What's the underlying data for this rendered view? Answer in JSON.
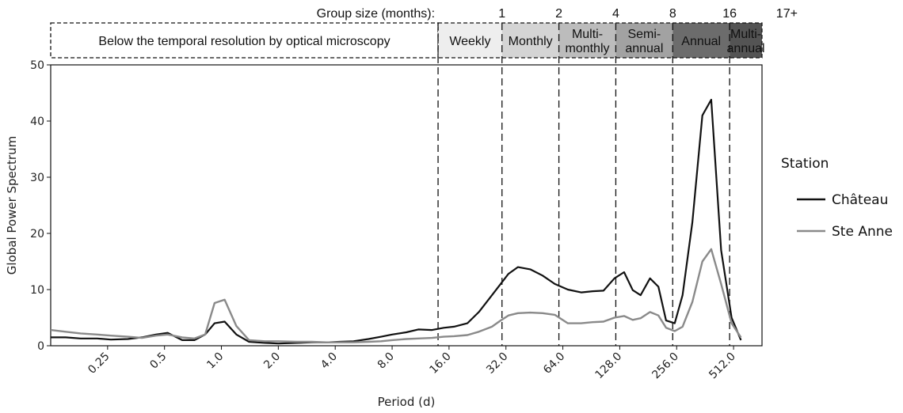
{
  "chart_data": {
    "type": "line",
    "xlabel": "Period (d)",
    "ylabel": "Global Power Spectrum",
    "xscale": "log2",
    "xlim": [
      0.125,
      724
    ],
    "ylim": [
      0,
      50
    ],
    "x_ticks": [
      0.25,
      0.5,
      1.0,
      2.0,
      4.0,
      8.0,
      16.0,
      32.0,
      64.0,
      128.0,
      256.0,
      512.0
    ],
    "x_tick_labels": [
      "0.25",
      "0.5",
      "1.0",
      "2.0",
      "4.0",
      "8.0",
      "16.0",
      "32.0",
      "64.0",
      "128.0",
      "256.0",
      "512.0"
    ],
    "y_ticks": [
      0,
      10,
      20,
      30,
      40,
      50
    ],
    "y_tick_labels": [
      "0",
      "10",
      "20",
      "30",
      "40",
      "50"
    ],
    "grid": false,
    "legend_title": "Station",
    "legend_position": "right",
    "series": [
      {
        "name": "Château",
        "color": "#111111",
        "x": [
          0.125,
          0.15,
          0.18,
          0.22,
          0.26,
          0.32,
          0.38,
          0.45,
          0.52,
          0.62,
          0.72,
          0.82,
          0.92,
          1.04,
          1.2,
          1.4,
          1.7,
          2.0,
          2.5,
          3.0,
          3.6,
          4.2,
          5.0,
          6.0,
          7.0,
          8.0,
          9.5,
          11,
          13,
          15,
          17,
          20,
          23,
          27,
          30,
          33,
          37,
          43,
          50,
          58,
          68,
          80,
          92,
          105,
          120,
          135,
          150,
          165,
          185,
          205,
          225,
          250,
          275,
          310,
          350,
          390,
          440,
          500,
          560
        ],
        "y": [
          1.5,
          1.5,
          1.3,
          1.3,
          1.1,
          1.2,
          1.5,
          2.0,
          2.3,
          1.0,
          1.0,
          2.0,
          4.0,
          4.3,
          2.0,
          0.7,
          0.5,
          0.4,
          0.5,
          0.6,
          0.6,
          0.7,
          0.8,
          1.2,
          1.6,
          2.0,
          2.4,
          2.9,
          2.8,
          3.2,
          3.4,
          4.0,
          6.0,
          9.0,
          11.0,
          12.8,
          14.0,
          13.6,
          12.5,
          11.0,
          10.0,
          9.5,
          9.7,
          9.8,
          12.0,
          13.1,
          9.9,
          9.0,
          12.0,
          10.5,
          4.5,
          4.0,
          9.0,
          22.0,
          41.0,
          43.8,
          17.0,
          5.0,
          1.0
        ]
      },
      {
        "name": "Ste Anne",
        "color": "#8a8a8a",
        "x": [
          0.125,
          0.15,
          0.18,
          0.22,
          0.26,
          0.32,
          0.38,
          0.45,
          0.52,
          0.62,
          0.72,
          0.82,
          0.92,
          1.04,
          1.2,
          1.4,
          1.7,
          2.0,
          2.5,
          3.0,
          3.6,
          4.2,
          5.0,
          6.0,
          7.0,
          8.0,
          9.5,
          11,
          13,
          15,
          17,
          20,
          23,
          27,
          30,
          33,
          37,
          43,
          50,
          58,
          68,
          80,
          92,
          105,
          120,
          135,
          150,
          165,
          185,
          205,
          225,
          250,
          275,
          310,
          350,
          390,
          440,
          500,
          560
        ],
        "y": [
          2.8,
          2.5,
          2.2,
          2.0,
          1.8,
          1.6,
          1.4,
          1.8,
          2.0,
          1.5,
          1.3,
          2.0,
          7.6,
          8.2,
          3.5,
          1.0,
          0.8,
          0.8,
          0.7,
          0.7,
          0.6,
          0.6,
          0.6,
          0.7,
          0.8,
          1.0,
          1.2,
          1.3,
          1.4,
          1.6,
          1.7,
          1.9,
          2.5,
          3.4,
          4.5,
          5.4,
          5.8,
          5.9,
          5.8,
          5.5,
          4.0,
          4.0,
          4.2,
          4.3,
          5.0,
          5.3,
          4.6,
          4.9,
          6.0,
          5.4,
          3.2,
          2.6,
          3.4,
          7.8,
          15.0,
          17.2,
          11.0,
          4.0,
          1.5
        ]
      }
    ],
    "vlines_x": [
      14.0,
      30.5,
      61,
      122,
      244,
      488
    ],
    "header": {
      "group_size_title": "Group size (months):",
      "group_sizes": [
        {
          "label": "1",
          "x": 30.5
        },
        {
          "label": "2",
          "x": 61
        },
        {
          "label": "4",
          "x": 122
        },
        {
          "label": "8",
          "x": 244
        },
        {
          "label": "16",
          "x": 488
        },
        {
          "label": "17+",
          "x": 980
        }
      ],
      "bands": [
        {
          "lines": [
            "Below the temporal resolution by optical microscopy"
          ],
          "x0": 0.125,
          "x1": 14.0,
          "fill": "#ffffff",
          "dashed": true
        },
        {
          "lines": [
            "Weekly"
          ],
          "x0": 14.0,
          "x1": 30.5,
          "fill": "#eeeeee",
          "dashed": false
        },
        {
          "lines": [
            "Monthly"
          ],
          "x0": 30.5,
          "x1": 61,
          "fill": "#d4d4d4",
          "dashed": false
        },
        {
          "lines": [
            "Multi-",
            "monthly"
          ],
          "x0": 61,
          "x1": 122,
          "fill": "#bcbcbc",
          "dashed": false
        },
        {
          "lines": [
            "Semi-",
            "annual"
          ],
          "x0": 122,
          "x1": 244,
          "fill": "#a2a2a2",
          "dashed": false
        },
        {
          "lines": [
            "Annual"
          ],
          "x0": 244,
          "x1": 488,
          "fill": "#6c6c6c",
          "dashed": false
        },
        {
          "lines": [
            "Multi-",
            "annual"
          ],
          "x0": 488,
          "x1": 724,
          "fill": "#545454",
          "dashed": false
        }
      ]
    }
  }
}
